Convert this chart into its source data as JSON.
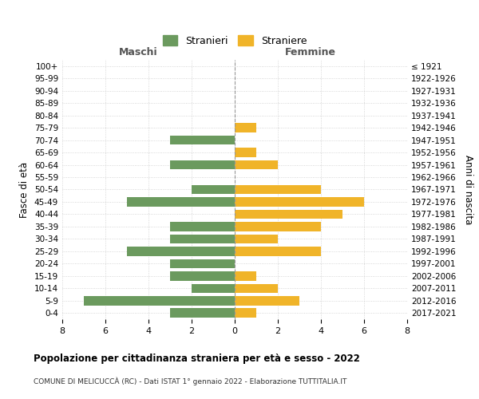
{
  "age_groups": [
    "100+",
    "95-99",
    "90-94",
    "85-89",
    "80-84",
    "75-79",
    "70-74",
    "65-69",
    "60-64",
    "55-59",
    "50-54",
    "45-49",
    "40-44",
    "35-39",
    "30-34",
    "25-29",
    "20-24",
    "15-19",
    "10-14",
    "5-9",
    "0-4"
  ],
  "birth_years": [
    "≤ 1921",
    "1922-1926",
    "1927-1931",
    "1932-1936",
    "1937-1941",
    "1942-1946",
    "1947-1951",
    "1952-1956",
    "1957-1961",
    "1962-1966",
    "1967-1971",
    "1972-1976",
    "1977-1981",
    "1982-1986",
    "1987-1991",
    "1992-1996",
    "1997-2001",
    "2002-2006",
    "2007-2011",
    "2012-2016",
    "2017-2021"
  ],
  "maschi": [
    0,
    0,
    0,
    0,
    0,
    0,
    3,
    0,
    3,
    0,
    2,
    5,
    0,
    3,
    3,
    5,
    3,
    3,
    2,
    7,
    3
  ],
  "femmine": [
    0,
    0,
    0,
    0,
    0,
    1,
    0,
    1,
    2,
    0,
    4,
    6,
    5,
    4,
    2,
    4,
    0,
    1,
    2,
    3,
    1
  ],
  "color_maschi": "#6b9a5e",
  "color_femmine": "#f0b429",
  "title": "Popolazione per cittadinanza straniera per età e sesso - 2022",
  "subtitle": "COMUNE DI MELICUCCÀ (RC) - Dati ISTAT 1° gennaio 2022 - Elaborazione TUTTITALIA.IT",
  "xlabel_left": "Maschi",
  "xlabel_right": "Femmine",
  "ylabel_left": "Fasce di età",
  "ylabel_right": "Anni di nascita",
  "legend_maschi": "Stranieri",
  "legend_femmine": "Straniere",
  "xlim": 8,
  "background_color": "#ffffff",
  "grid_color": "#cccccc"
}
